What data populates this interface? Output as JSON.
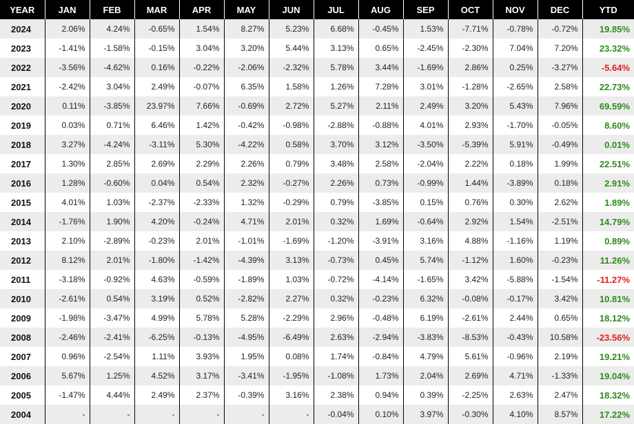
{
  "headers": [
    "YEAR",
    "JAN",
    "FEB",
    "MAR",
    "APR",
    "MAY",
    "JUN",
    "JUL",
    "AUG",
    "SEP",
    "OCT",
    "NOV",
    "DEC",
    "YTD"
  ],
  "rows": [
    {
      "year": "2024",
      "months": [
        "2.06%",
        "4.24%",
        "-0.65%",
        "1.54%",
        "8.27%",
        "5.23%",
        "6.68%",
        "-0.45%",
        "1.53%",
        "-7.71%",
        "-0.78%",
        "-0.72%"
      ],
      "ytd": "19.85%",
      "sign": "pos"
    },
    {
      "year": "2023",
      "months": [
        "-1.41%",
        "-1.58%",
        "-0.15%",
        "3.04%",
        "3.20%",
        "5.44%",
        "3.13%",
        "0.65%",
        "-2.45%",
        "-2.30%",
        "7.04%",
        "7.20%"
      ],
      "ytd": "23.32%",
      "sign": "pos"
    },
    {
      "year": "2022",
      "months": [
        "-3.56%",
        "-4.62%",
        "0.16%",
        "-0.22%",
        "-2.06%",
        "-2.32%",
        "5.78%",
        "3.44%",
        "-1.69%",
        "2.86%",
        "0.25%",
        "-3.27%"
      ],
      "ytd": "-5.64%",
      "sign": "neg"
    },
    {
      "year": "2021",
      "months": [
        "-2.42%",
        "3.04%",
        "2.49%",
        "-0.07%",
        "6.35%",
        "1.58%",
        "1.26%",
        "7.28%",
        "3.01%",
        "-1.28%",
        "-2.65%",
        "2.58%"
      ],
      "ytd": "22.73%",
      "sign": "pos"
    },
    {
      "year": "2020",
      "months": [
        "0.11%",
        "-3.85%",
        "23.97%",
        "7.66%",
        "-0.69%",
        "2.72%",
        "5.27%",
        "2.11%",
        "2.49%",
        "3.20%",
        "5.43%",
        "7.96%"
      ],
      "ytd": "69.59%",
      "sign": "pos"
    },
    {
      "year": "2019",
      "months": [
        "0.03%",
        "0.71%",
        "6.46%",
        "1.42%",
        "-0.42%",
        "-0.98%",
        "-2.88%",
        "-0.88%",
        "4.01%",
        "2.93%",
        "-1.70%",
        "-0.05%"
      ],
      "ytd": "8.60%",
      "sign": "pos"
    },
    {
      "year": "2018",
      "months": [
        "3.27%",
        "-4.24%",
        "-3.11%",
        "5.30%",
        "-4.22%",
        "0.58%",
        "3.70%",
        "3.12%",
        "-3.50%",
        "-5.39%",
        "5.91%",
        "-0.49%"
      ],
      "ytd": "0.01%",
      "sign": "pos"
    },
    {
      "year": "2017",
      "months": [
        "1.30%",
        "2.85%",
        "2.69%",
        "2.29%",
        "2.26%",
        "0.79%",
        "3.48%",
        "2.58%",
        "-2.04%",
        "2.22%",
        "0.18%",
        "1.99%"
      ],
      "ytd": "22.51%",
      "sign": "pos"
    },
    {
      "year": "2016",
      "months": [
        "1.28%",
        "-0.60%",
        "0.04%",
        "0.54%",
        "2.32%",
        "-0.27%",
        "2.26%",
        "0.73%",
        "-0.99%",
        "1.44%",
        "-3.89%",
        "0.18%"
      ],
      "ytd": "2.91%",
      "sign": "pos"
    },
    {
      "year": "2015",
      "months": [
        "4.01%",
        "1.03%",
        "-2.37%",
        "-2.33%",
        "1.32%",
        "-0.29%",
        "0.79%",
        "-3.85%",
        "0.15%",
        "0.76%",
        "0.30%",
        "2.62%"
      ],
      "ytd": "1.89%",
      "sign": "pos"
    },
    {
      "year": "2014",
      "months": [
        "-1.76%",
        "1.90%",
        "4.20%",
        "-0.24%",
        "4.71%",
        "2.01%",
        "0.32%",
        "1.69%",
        "-0.64%",
        "2.92%",
        "1.54%",
        "-2.51%"
      ],
      "ytd": "14.79%",
      "sign": "pos"
    },
    {
      "year": "2013",
      "months": [
        "2.10%",
        "-2.89%",
        "-0.23%",
        "2.01%",
        "-1.01%",
        "-1.69%",
        "-1.20%",
        "-3.91%",
        "3.16%",
        "4.88%",
        "-1.16%",
        "1.19%"
      ],
      "ytd": "0.89%",
      "sign": "pos"
    },
    {
      "year": "2012",
      "months": [
        "8.12%",
        "2.01%",
        "-1.80%",
        "-1.42%",
        "-4.39%",
        "3.13%",
        "-0.73%",
        "0.45%",
        "5.74%",
        "-1.12%",
        "1.60%",
        "-0.23%"
      ],
      "ytd": "11.26%",
      "sign": "pos"
    },
    {
      "year": "2011",
      "months": [
        "-3.18%",
        "-0.92%",
        "4.63%",
        "-0.59%",
        "-1.89%",
        "1.03%",
        "-0.72%",
        "-4.14%",
        "-1.65%",
        "3.42%",
        "-5.88%",
        "-1.54%"
      ],
      "ytd": "-11.27%",
      "sign": "neg"
    },
    {
      "year": "2010",
      "months": [
        "-2.61%",
        "0.54%",
        "3.19%",
        "0.52%",
        "-2.82%",
        "2.27%",
        "0.32%",
        "-0.23%",
        "6.32%",
        "-0.08%",
        "-0.17%",
        "3.42%"
      ],
      "ytd": "10.81%",
      "sign": "pos"
    },
    {
      "year": "2009",
      "months": [
        "-1.98%",
        "-3.47%",
        "4.99%",
        "5.78%",
        "5.28%",
        "-2.29%",
        "2.96%",
        "-0.48%",
        "6.19%",
        "-2.61%",
        "2.44%",
        "0.65%"
      ],
      "ytd": "18.12%",
      "sign": "pos"
    },
    {
      "year": "2008",
      "months": [
        "-2.46%",
        "-2.41%",
        "-6.25%",
        "-0.13%",
        "-4.95%",
        "-6.49%",
        "2.63%",
        "-2.94%",
        "-3.83%",
        "-8.53%",
        "-0.43%",
        "10.58%"
      ],
      "ytd": "-23.56%",
      "sign": "neg"
    },
    {
      "year": "2007",
      "months": [
        "0.96%",
        "-2.54%",
        "1.11%",
        "3.93%",
        "1.95%",
        "0.08%",
        "1.74%",
        "-0.84%",
        "4.79%",
        "5.61%",
        "-0.96%",
        "2.19%"
      ],
      "ytd": "19.21%",
      "sign": "pos"
    },
    {
      "year": "2006",
      "months": [
        "5.67%",
        "1.25%",
        "4.52%",
        "3.17%",
        "-3.41%",
        "-1.95%",
        "-1.08%",
        "1.73%",
        "2.04%",
        "2.69%",
        "4.71%",
        "-1.33%"
      ],
      "ytd": "19.04%",
      "sign": "pos"
    },
    {
      "year": "2005",
      "months": [
        "-1.47%",
        "4.44%",
        "2.49%",
        "2.37%",
        "-0.39%",
        "3.16%",
        "2.38%",
        "0.94%",
        "0.39%",
        "-2.25%",
        "2.63%",
        "2.47%"
      ],
      "ytd": "18.32%",
      "sign": "pos"
    },
    {
      "year": "2004",
      "months": [
        "-",
        "-",
        "-",
        "-",
        "-",
        "-",
        "-0.04%",
        "0.10%",
        "3.97%",
        "-0.30%",
        "4.10%",
        "8.57%"
      ],
      "ytd": "17.22%",
      "sign": "pos"
    }
  ]
}
